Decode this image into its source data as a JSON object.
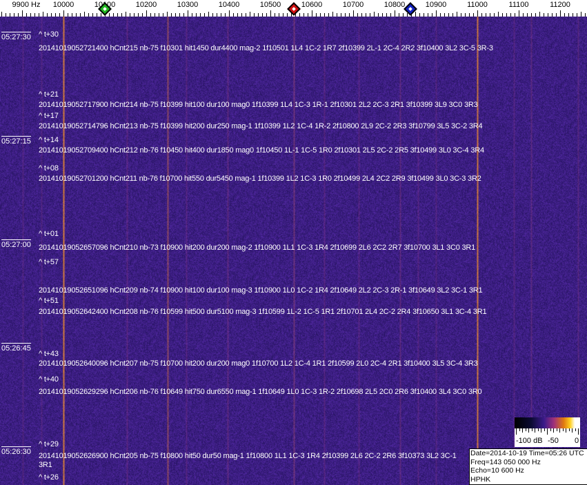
{
  "axis": {
    "unit_label": "9900 Hz",
    "ticks": [
      "10000",
      "10100",
      "10200",
      "10300",
      "10400",
      "10500",
      "10600",
      "10700",
      "10800",
      "10900",
      "11000",
      "11100",
      "11200"
    ],
    "markers": [
      {
        "name": "green-marker",
        "freq": 10100,
        "color": "#1fb51f"
      },
      {
        "name": "red-marker",
        "freq": 10556,
        "color": "#d01010"
      },
      {
        "name": "blue-marker",
        "freq": 10838,
        "color": "#1020c0"
      }
    ]
  },
  "time_labels": [
    "05:27:30",
    "05:27:15",
    "05:27:00",
    "05:26:45",
    "05:26:30"
  ],
  "offset_labels": [
    "^ t+30",
    "^ t+21",
    "^ t+17",
    "^ t+14",
    "^ t+08",
    "^ t+01",
    "^ t+57",
    "^ t+51",
    "^ t+43",
    "^ t+40",
    "^ t+29",
    "^ t+26"
  ],
  "detections": [
    "20141019052721400 hCnt215 nb-75 f10301 hit1450 dur4400 mag-2 1f10501 1L4 1C-2 1R7 2f10399 2L-1 2C-4 2R2 3f10400 3L2 3C-5 3R-3",
    "20141019052717900 hCnt214 nb-75 f10399 hit100 dur100 mag0 1f10399 1L4 1C-3 1R-1 2f10301 2L2 2C-3 2R1 3f10399 3L9 3C0 3R3",
    "20141019052714796 hCnt213 nb-75 f10399 hit200 dur250 mag-1 1f10399 1L2 1C-4 1R-2 2f10800 2L9 2C-2 2R3 3f10799 3L5 3C-2 3R4",
    "20141019052709400 hCnt212 nb-76 f10450 hit400 dur1850 mag0 1f10450 1L-1 1C-5 1R0 2f10301 2L5 2C-2 2R5 3f10499 3L0 3C-4 3R4",
    "20141019052701200 hCnt211 nb-76 f10700 hit550 dur5450 mag-1 1f10399 1L2 1C-3 1R0 2f10499 2L4 2C2 2R9 3f10499 3L0 3C-3 3R2",
    "20141019052657096 hCnt210 nb-73 f10900 hit200 dur200 mag-2 1f10900 1L1 1C-3 1R4 2f10699 2L6 2C2 2R7 3f10700 3L1 3C0 3R1",
    "20141019052651096 hCnt209 nb-74 f10900 hit100 dur100 mag-3 1f10900 1L0 1C-2 1R4 2f10649 2L2 2C-3 2R-1 3f10649 3L2 3C-1 3R1",
    "20141019052642400 hCnt208 nb-76 f10599 hit500 dur5100 mag-3 1f10599 1L-2 1C-5 1R1 2f10701 2L4 2C-2 2R4 3f10650 3L1 3C-4 3R1",
    "20141019052640096 hCnt207 nb-75 f10700 hit200 dur200 mag0 1f10700 1L2 1C-4 1R1 2f10599 2L0 2C-4 2R1 3f10400 3L5 3C-4 3R3",
    "20141019052629296 hCnt206 nb-76 f10649 hit750 dur6550 mag-1 1f10649 1L0 1C-3 1R-2 2f10698 2L5 2C0 2R6 3f10400 3L4 3C0 3R0",
    "20141019052626900 hCnt205 nb-75 f10800 hit50 dur50 mag-1 1f10800 1L1 1C-3 1R4 2f10399 2L6 2C-2 2R6 3f10373 3L2 3C-1 3R1"
  ],
  "color_scale": {
    "labels": [
      "-100 dB",
      "-50",
      "0"
    ]
  },
  "info": {
    "line1": "Date=2014-10-19 Time=05:26 UTC",
    "line2": "Freq=143 050 000 Hz",
    "line3": "Echo=10 600 Hz",
    "line4": "HPHK"
  }
}
